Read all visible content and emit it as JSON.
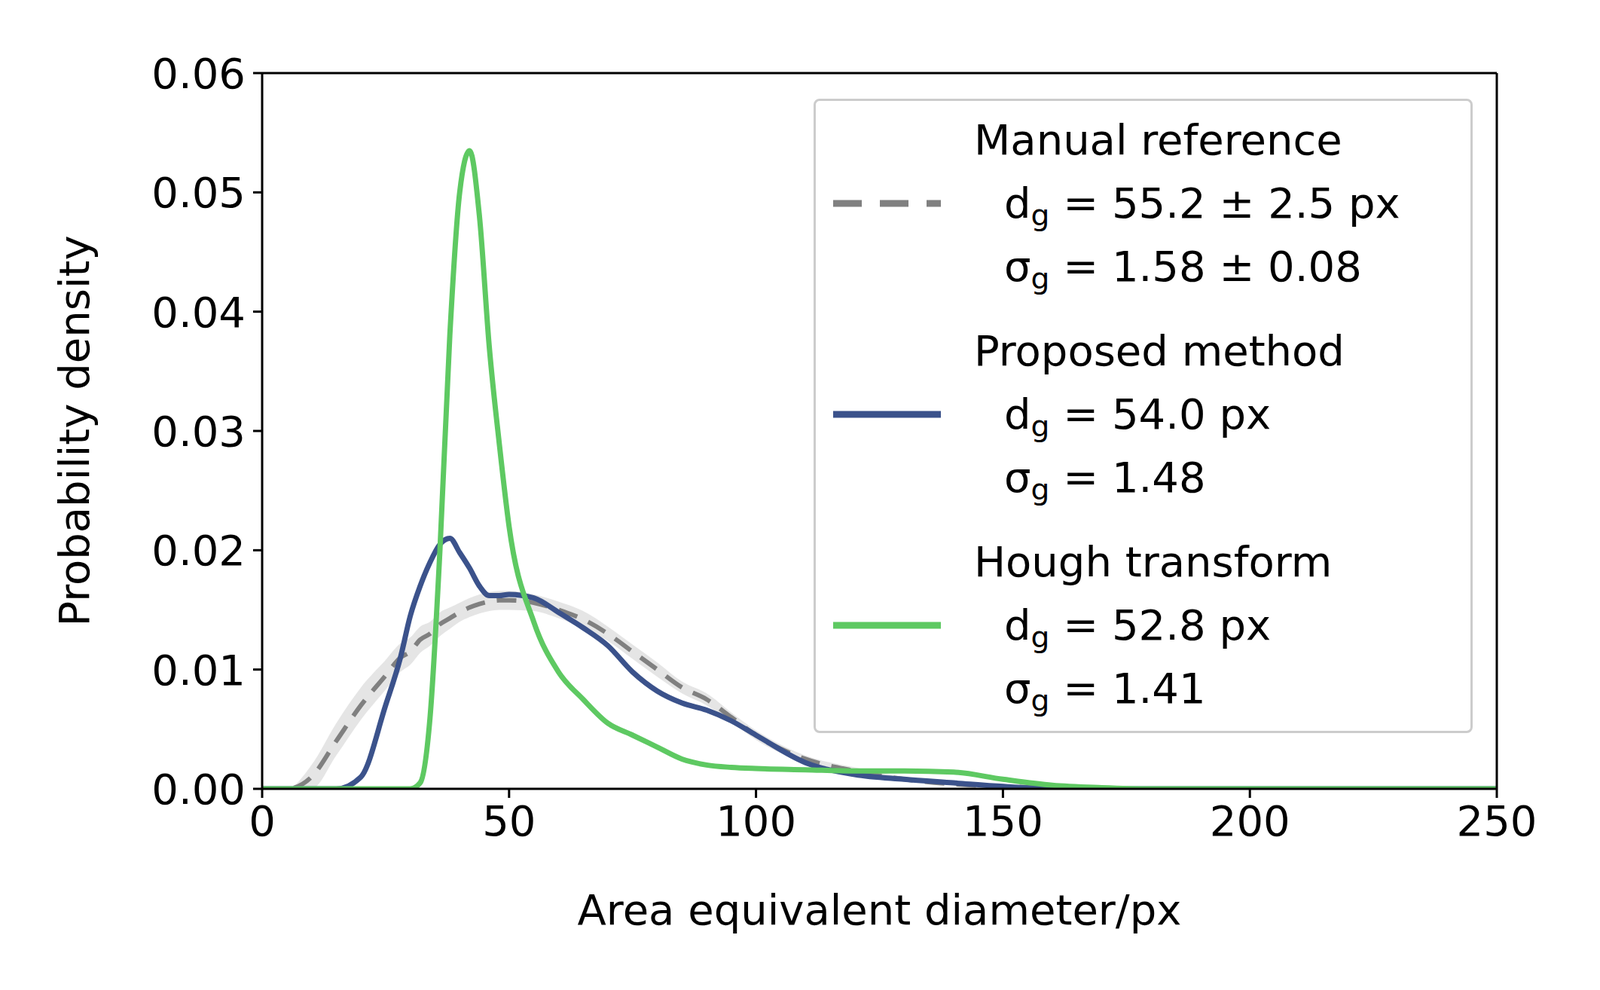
{
  "chart_data": {
    "type": "line",
    "x_label": "Area equivalent diameter/px",
    "y_label": "Probability density",
    "x": [
      0,
      5,
      10,
      15,
      20,
      25,
      28,
      30,
      32,
      34,
      36,
      38,
      40,
      42,
      44,
      46,
      48,
      50,
      55,
      60,
      65,
      70,
      75,
      80,
      85,
      90,
      95,
      100,
      110,
      120,
      130,
      140,
      150,
      160,
      170,
      180,
      200,
      225,
      250
    ],
    "xlim": [
      0,
      250
    ],
    "xticks": [
      0,
      50,
      100,
      150,
      200,
      250
    ],
    "ylim": [
      0,
      0.06
    ],
    "yticks": [
      {
        "value": 0,
        "label": "0.00"
      },
      {
        "value": 0.01,
        "label": "0.01"
      },
      {
        "value": 0.02,
        "label": "0.02"
      },
      {
        "value": 0.03,
        "label": "0.03"
      },
      {
        "value": 0.04,
        "label": "0.04"
      },
      {
        "value": 0.05,
        "label": "0.05"
      },
      {
        "value": 0.06,
        "label": "0.06"
      }
    ],
    "legend": "upper right",
    "grid": false,
    "series": [
      {
        "name": "Manual reference",
        "color": "#808080",
        "line_style": "dashed",
        "annotations": [
          "dg = 55.2 ± 2.5 px",
          "σg = 1.58 ± 0.08"
        ],
        "values": [
          0,
          0,
          0.001,
          0.004,
          0.007,
          0.0095,
          0.011,
          0.0115,
          0.0125,
          0.013,
          0.0138,
          0.0143,
          0.0148,
          0.0152,
          0.0155,
          0.0157,
          0.0158,
          0.0158,
          0.0156,
          0.015,
          0.0142,
          0.013,
          0.0115,
          0.01,
          0.0085,
          0.0075,
          0.006,
          0.0045,
          0.0025,
          0.0015,
          0.0008,
          0.0004,
          0.0002,
          0.0001,
          0,
          0,
          0,
          0,
          0
        ],
        "lower": [
          0,
          0,
          0,
          0.0028,
          0.0058,
          0.0083,
          0.0098,
          0.0104,
          0.0114,
          0.012,
          0.0128,
          0.0134,
          0.014,
          0.0144,
          0.0147,
          0.0149,
          0.015,
          0.015,
          0.0149,
          0.0143,
          0.0135,
          0.0124,
          0.0109,
          0.0094,
          0.008,
          0.007,
          0.0056,
          0.0041,
          0.0022,
          0.0012,
          0.0006,
          0.0003,
          0.0001,
          0,
          0,
          0,
          0,
          0,
          0
        ],
        "upper": [
          0,
          0,
          0.002,
          0.0055,
          0.0085,
          0.0108,
          0.0122,
          0.0127,
          0.0136,
          0.014,
          0.0148,
          0.0152,
          0.0156,
          0.016,
          0.0163,
          0.0165,
          0.0166,
          0.0166,
          0.0163,
          0.0157,
          0.0149,
          0.0136,
          0.0121,
          0.0106,
          0.009,
          0.008,
          0.0064,
          0.0049,
          0.0028,
          0.0018,
          0.001,
          0.0005,
          0.0003,
          0.0002,
          0.0001,
          0,
          0,
          0,
          0
        ]
      },
      {
        "name": "Proposed method",
        "color": "#3b528b",
        "line_style": "solid",
        "annotations": [
          "dg = 54.0 px",
          "σg = 1.48"
        ],
        "values": [
          0,
          0,
          0,
          0,
          0.001,
          0.007,
          0.011,
          0.0145,
          0.017,
          0.019,
          0.0205,
          0.021,
          0.0198,
          0.0185,
          0.017,
          0.0162,
          0.0162,
          0.0163,
          0.016,
          0.0148,
          0.0135,
          0.012,
          0.0098,
          0.0082,
          0.0072,
          0.0066,
          0.0057,
          0.0045,
          0.0022,
          0.0012,
          0.0008,
          0.0005,
          0.0002,
          0,
          0,
          0,
          0,
          0,
          0
        ]
      },
      {
        "name": "Hough transform",
        "color": "#5ec962",
        "line_style": "solid",
        "annotations": [
          "dg = 52.8 px",
          "σg = 1.41"
        ],
        "values": [
          0,
          0,
          0,
          0,
          0,
          0,
          0,
          0,
          0.0005,
          0.006,
          0.02,
          0.038,
          0.05,
          0.0535,
          0.048,
          0.037,
          0.029,
          0.022,
          0.014,
          0.0098,
          0.0075,
          0.0055,
          0.0045,
          0.0035,
          0.0025,
          0.002,
          0.0018,
          0.0017,
          0.0016,
          0.0015,
          0.0015,
          0.0014,
          0.0008,
          0.0003,
          0.0001,
          0,
          0,
          0,
          0
        ]
      }
    ]
  }
}
